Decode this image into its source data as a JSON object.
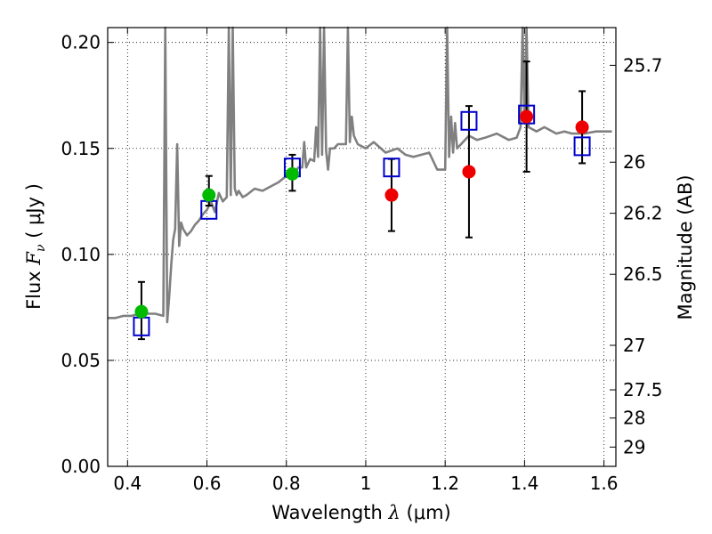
{
  "chart_data": {
    "type": "scatter",
    "title": "",
    "xlabel_prefix": "Wavelength",
    "xlabel_symbol": "λ",
    "xlabel_unit": "(μm)",
    "ylabel_prefix": "Flux",
    "ylabel_symbol": "F",
    "ylabel_subscript": "ν",
    "ylabel_unit": "( μJy )",
    "y2label": "Magnitude (AB)",
    "xlim": [
      0.35,
      1.63
    ],
    "ylim": [
      0.0,
      0.207
    ],
    "grid": true,
    "xticks": [
      0.4,
      0.6,
      0.8,
      1.0,
      1.2,
      1.4,
      1.6
    ],
    "xtick_labels": [
      "0.4",
      "0.6",
      "0.8",
      "1",
      "1.2",
      "1.4",
      "1.6"
    ],
    "yticks": [
      0.0,
      0.05,
      0.1,
      0.15,
      0.2
    ],
    "ytick_labels": [
      "0.00",
      "0.05",
      "0.10",
      "0.15",
      "0.20"
    ],
    "y2ticks": [
      {
        "label": "25.7",
        "flux": 0.1892
      },
      {
        "label": "26",
        "flux": 0.1435
      },
      {
        "label": "26.2",
        "flux": 0.1194
      },
      {
        "label": "26.5",
        "flux": 0.0906
      },
      {
        "label": "27",
        "flux": 0.0571
      },
      {
        "label": "27.5",
        "flux": 0.0361
      },
      {
        "label": "28",
        "flux": 0.0228
      },
      {
        "label": "29",
        "flux": 0.0091
      }
    ],
    "colors": {
      "spectrum": "#808080",
      "model_boxes": "#0000cc",
      "green_points": "#00bb00",
      "red_points": "#ee0000",
      "errorbars": "#000000"
    },
    "series": [
      {
        "kind": "spectrum",
        "x": [
          0.35,
          0.37,
          0.39,
          0.41,
          0.43,
          0.45,
          0.47,
          0.49,
          0.495,
          0.5,
          0.505,
          0.51,
          0.515,
          0.52,
          0.525,
          0.53,
          0.535,
          0.54,
          0.55,
          0.56,
          0.57,
          0.58,
          0.59,
          0.6,
          0.61,
          0.62,
          0.63,
          0.64,
          0.65,
          0.655,
          0.66,
          0.665,
          0.67,
          0.675,
          0.68,
          0.69,
          0.7,
          0.72,
          0.74,
          0.76,
          0.78,
          0.8,
          0.82,
          0.83,
          0.84,
          0.845,
          0.85,
          0.86,
          0.87,
          0.875,
          0.88,
          0.885,
          0.89,
          0.895,
          0.9,
          0.905,
          0.91,
          0.92,
          0.93,
          0.94,
          0.95,
          0.955,
          0.96,
          0.965,
          0.97,
          0.98,
          1.0,
          1.02,
          1.05,
          1.08,
          1.1,
          1.12,
          1.14,
          1.16,
          1.18,
          1.2,
          1.205,
          1.21,
          1.215,
          1.22,
          1.225,
          1.23,
          1.26,
          1.28,
          1.3,
          1.33,
          1.36,
          1.38,
          1.39,
          1.395,
          1.4,
          1.405,
          1.41,
          1.43,
          1.45,
          1.48,
          1.5,
          1.52,
          1.55,
          1.58,
          1.6,
          1.62
        ],
        "y": [
          0.07,
          0.07,
          0.071,
          0.071,
          0.072,
          0.072,
          0.072,
          0.071,
          0.215,
          0.068,
          0.08,
          0.095,
          0.107,
          0.112,
          0.152,
          0.104,
          0.115,
          0.112,
          0.109,
          0.111,
          0.114,
          0.116,
          0.119,
          0.121,
          0.125,
          0.12,
          0.129,
          0.125,
          0.127,
          0.215,
          0.128,
          0.215,
          0.131,
          0.128,
          0.13,
          0.127,
          0.128,
          0.131,
          0.13,
          0.132,
          0.134,
          0.137,
          0.138,
          0.141,
          0.141,
          0.153,
          0.141,
          0.145,
          0.144,
          0.16,
          0.146,
          0.215,
          0.147,
          0.215,
          0.149,
          0.14,
          0.15,
          0.15,
          0.152,
          0.152,
          0.152,
          0.215,
          0.153,
          0.165,
          0.156,
          0.152,
          0.15,
          0.153,
          0.148,
          0.15,
          0.147,
          0.146,
          0.147,
          0.148,
          0.14,
          0.14,
          0.215,
          0.146,
          0.165,
          0.148,
          0.162,
          0.15,
          0.156,
          0.154,
          0.155,
          0.157,
          0.154,
          0.155,
          0.16,
          0.215,
          0.162,
          0.215,
          0.16,
          0.158,
          0.16,
          0.157,
          0.158,
          0.157,
          0.157,
          0.158,
          0.158,
          0.158
        ]
      },
      {
        "kind": "model_boxes",
        "x": [
          0.435,
          0.605,
          0.815,
          1.065,
          1.26,
          1.405,
          1.545
        ],
        "y": [
          0.066,
          0.121,
          0.141,
          0.141,
          0.163,
          0.166,
          0.151
        ]
      },
      {
        "kind": "green_points",
        "x": [
          0.435,
          0.605,
          0.815
        ],
        "y": [
          0.073,
          0.128,
          0.138
        ],
        "err_low": [
          0.013,
          0.005,
          0.008
        ],
        "err_high": [
          0.014,
          0.009,
          0.009
        ]
      },
      {
        "kind": "red_points",
        "x": [
          1.065,
          1.26,
          1.405,
          1.545
        ],
        "y": [
          0.128,
          0.139,
          0.165,
          0.16
        ],
        "err_low": [
          0.017,
          0.031,
          0.026,
          0.017
        ],
        "err_high": [
          0.017,
          0.031,
          0.026,
          0.017
        ]
      }
    ]
  }
}
